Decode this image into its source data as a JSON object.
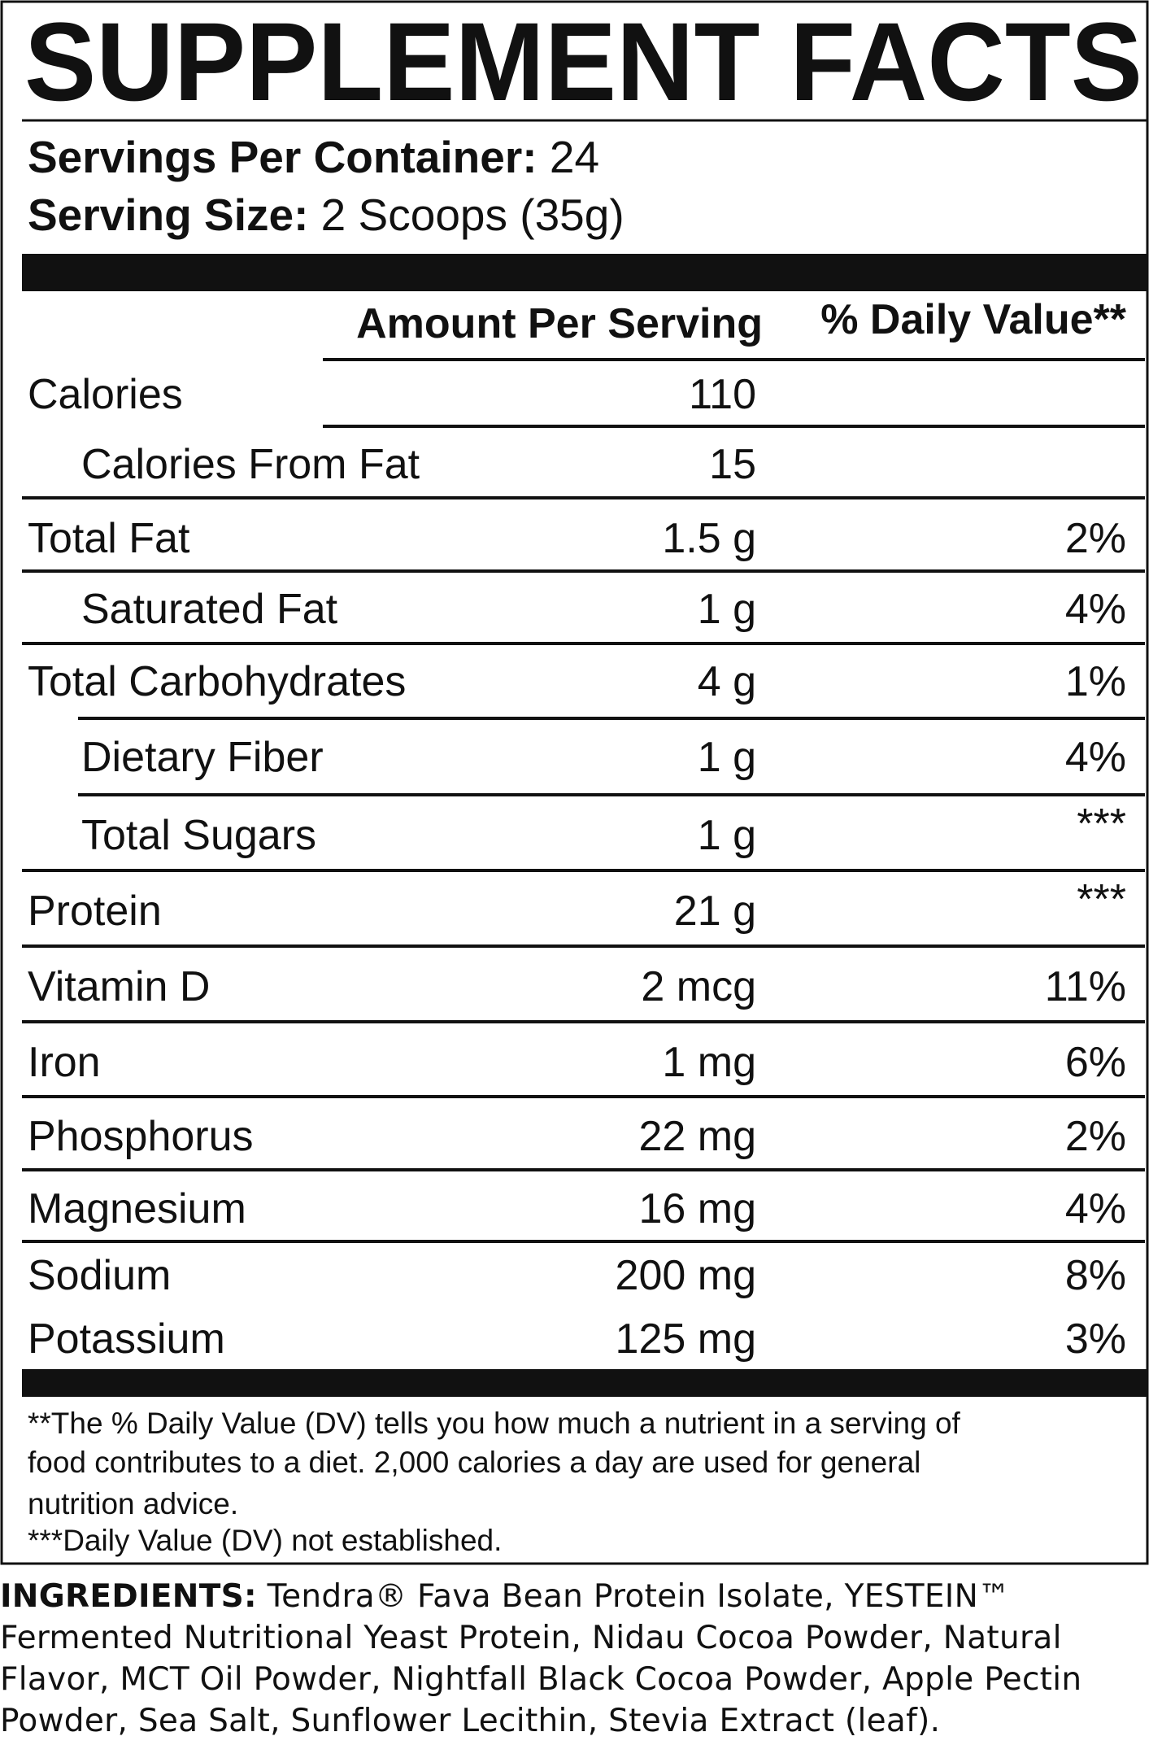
{
  "header": {
    "title": "SUPPLEMENT FACTS"
  },
  "servings_per_container": {
    "label": "Servings Per Container:",
    "value": "24"
  },
  "serving_size": {
    "label": "Serving Size:",
    "value": "2 Scoops (35g)"
  },
  "table": {
    "columns": [
      "Amount Per Serving",
      "% Daily Value**"
    ],
    "rows": [
      [
        "Calories",
        "110"
      ],
      [
        "Calories From Fat",
        "15"
      ],
      [
        "Total Fat",
        "1.5 g",
        "2%"
      ],
      [
        "Saturated Fat",
        "1 g",
        "4%"
      ],
      [
        "Total Carbohydrates",
        "4 g",
        "1%"
      ],
      [
        "Dietary Fiber",
        "1 g",
        "4%"
      ],
      [
        "Total Sugars",
        "1 g",
        "***"
      ],
      [
        "Protein",
        "21 g",
        "***"
      ],
      [
        "Vitamin D",
        "2 mcg",
        "11%"
      ],
      [
        "Iron",
        "1 mg",
        "6%"
      ],
      [
        "Phosphorus",
        "22 mg",
        "2%"
      ],
      [
        "Magnesium",
        "16 mg",
        "4%"
      ],
      [
        "Sodium",
        "200 mg",
        "8%"
      ],
      [
        "Potassium",
        "125 mg",
        "3%"
      ]
    ]
  },
  "footnotes": [
    "**The % Daily Value (DV) tells you how much a nutrient in a serving of",
    "food contributes to a diet. 2,000 calories a day are used for general",
    "nutrition advice.",
    "***Daily Value (DV) not established."
  ],
  "ingredients": {
    "label": "INGREDIENTS:",
    "text": "Tendra® Fava Bean Protein Isolate, YESTEIN™ Fermented Nutritional Yeast Protein, Nidau Cocoa Powder, Natural Flavor, MCT Oil Powder, Nightfall Black Cocoa Powder, Apple Pectin Powder, Sea Salt, Sunflower Lecithin, Stevia Extract (leaf)."
  }
}
